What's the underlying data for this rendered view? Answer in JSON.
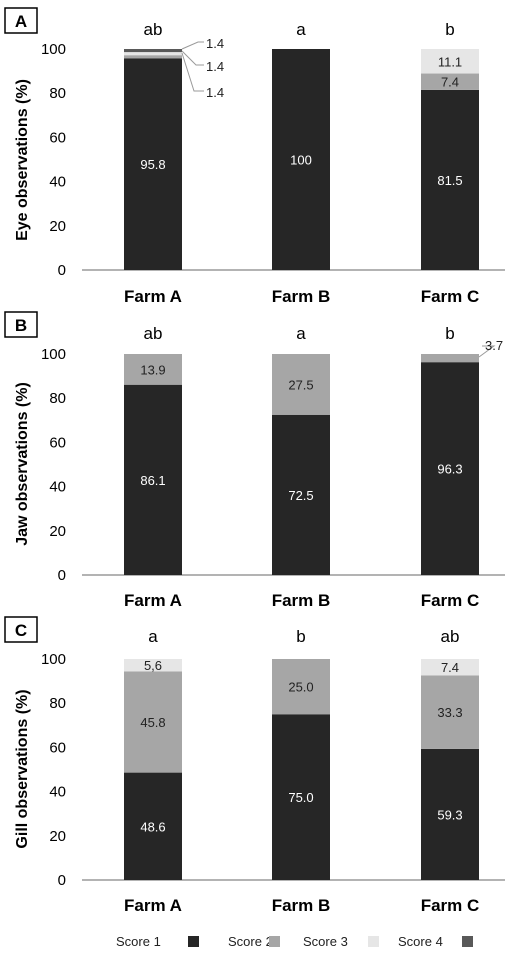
{
  "colors": {
    "score1": "#262626",
    "score2": "#a6a6a6",
    "score3": "#e6e6e6",
    "score4": "#595959",
    "axis": "#9a9a9a",
    "label_dark_bg": "#ffffff",
    "label_light_bg": "#222222"
  },
  "legend": {
    "items": [
      {
        "label": "Score 1",
        "color_key": "score1"
      },
      {
        "label": "Score 2",
        "color_key": "score2"
      },
      {
        "label": "Score 3",
        "color_key": "score3"
      },
      {
        "label": "Score 4",
        "color_key": "score4"
      }
    ]
  },
  "chart_data": [
    {
      "type": "bar",
      "stacked": true,
      "panel": "A",
      "ylabel": "Eye observations (%)",
      "ylim": [
        0,
        100
      ],
      "yticks": [
        "0",
        "20",
        "40",
        "60",
        "80",
        "100"
      ],
      "categories": [
        "Farm A",
        "Farm B",
        "Farm C"
      ],
      "significance": [
        "ab",
        "a",
        "b"
      ],
      "series": [
        {
          "name": "Score 1",
          "values": [
            95.8,
            100,
            81.5
          ],
          "labels": [
            "95.8",
            "100",
            "81.5"
          ]
        },
        {
          "name": "Score 2",
          "values": [
            1.4,
            0,
            7.4
          ],
          "labels": [
            "1.4",
            "",
            "7.4"
          ]
        },
        {
          "name": "Score 3",
          "values": [
            1.4,
            0,
            11.1
          ],
          "labels": [
            "1.4",
            "",
            "11.1"
          ]
        },
        {
          "name": "Score 4",
          "values": [
            1.4,
            0,
            0
          ],
          "labels": [
            "1.4",
            "",
            ""
          ]
        }
      ]
    },
    {
      "type": "bar",
      "stacked": true,
      "panel": "B",
      "ylabel": "Jaw observations (%)",
      "ylim": [
        0,
        100
      ],
      "yticks": [
        "0",
        "20",
        "40",
        "60",
        "80",
        "100"
      ],
      "categories": [
        "Farm A",
        "Farm B",
        "Farm C"
      ],
      "significance": [
        "ab",
        "a",
        "b"
      ],
      "series": [
        {
          "name": "Score 1",
          "values": [
            86.1,
            72.5,
            96.3
          ],
          "labels": [
            "86.1",
            "72.5",
            "96.3"
          ]
        },
        {
          "name": "Score 2",
          "values": [
            13.9,
            27.5,
            3.7
          ],
          "labels": [
            "13.9",
            "27.5",
            "3.7"
          ]
        }
      ]
    },
    {
      "type": "bar",
      "stacked": true,
      "panel": "C",
      "ylabel": "Gill observations (%)",
      "ylim": [
        0,
        100
      ],
      "yticks": [
        "0",
        "20",
        "40",
        "60",
        "80",
        "100"
      ],
      "categories": [
        "Farm A",
        "Farm B",
        "Farm C"
      ],
      "significance": [
        "a",
        "b",
        "ab"
      ],
      "series": [
        {
          "name": "Score 1",
          "values": [
            48.6,
            75.0,
            59.3
          ],
          "labels": [
            "48.6",
            "75.0",
            "59.3"
          ]
        },
        {
          "name": "Score 2",
          "values": [
            45.8,
            25.0,
            33.3
          ],
          "labels": [
            "45.8",
            "25.0",
            "33.3"
          ]
        },
        {
          "name": "Score 3",
          "values": [
            5.6,
            0,
            7.4
          ],
          "labels": [
            "5,6",
            "",
            "7.4"
          ]
        }
      ]
    }
  ]
}
